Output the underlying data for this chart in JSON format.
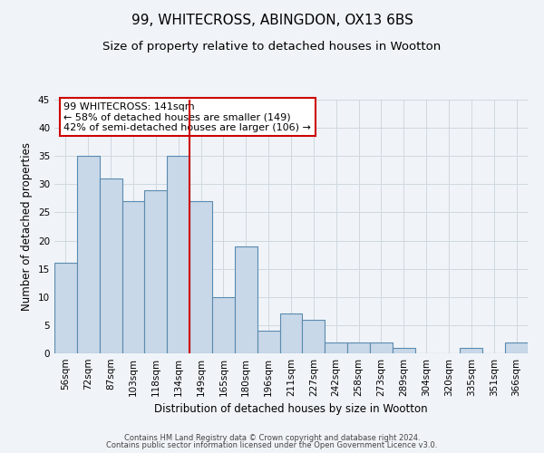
{
  "title": "99, WHITECROSS, ABINGDON, OX13 6BS",
  "subtitle": "Size of property relative to detached houses in Wootton",
  "xlabel": "Distribution of detached houses by size in Wootton",
  "ylabel": "Number of detached properties",
  "footer_line1": "Contains HM Land Registry data © Crown copyright and database right 2024.",
  "footer_line2": "Contains public sector information licensed under the Open Government Licence v3.0.",
  "categories": [
    "56sqm",
    "72sqm",
    "87sqm",
    "103sqm",
    "118sqm",
    "134sqm",
    "149sqm",
    "165sqm",
    "180sqm",
    "196sqm",
    "211sqm",
    "227sqm",
    "242sqm",
    "258sqm",
    "273sqm",
    "289sqm",
    "304sqm",
    "320sqm",
    "335sqm",
    "351sqm",
    "366sqm"
  ],
  "values": [
    16,
    35,
    31,
    27,
    29,
    35,
    27,
    10,
    19,
    4,
    7,
    6,
    2,
    2,
    2,
    1,
    0,
    0,
    1,
    0,
    2
  ],
  "bar_color": "#c8d8e8",
  "bar_edge_color": "#5a8ab0",
  "bar_linewidth": 0.8,
  "vline_x": 5.5,
  "vline_color": "#cc0000",
  "vline_linewidth": 1.5,
  "annotation_title": "99 WHITECROSS: 141sqm",
  "annotation_line1": "← 58% of detached houses are smaller (149)",
  "annotation_line2": "42% of semi-detached houses are larger (106) →",
  "annotation_box_color": "#cc0000",
  "ylim": [
    0,
    45
  ],
  "yticks": [
    0,
    5,
    10,
    15,
    20,
    25,
    30,
    35,
    40,
    45
  ],
  "grid_color": "#d0d8e0",
  "background_color": "#f0f4f8",
  "title_fontsize": 11,
  "subtitle_fontsize": 9.5,
  "axis_label_fontsize": 8.5,
  "tick_fontsize": 7.5,
  "annotation_fontsize": 8,
  "footer_fontsize": 6
}
